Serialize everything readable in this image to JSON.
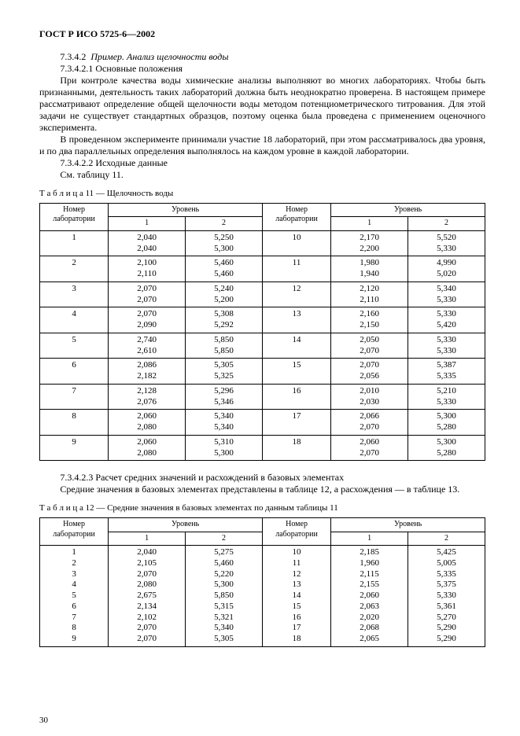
{
  "title": "ГОСТ Р ИСО 5725-6—2002",
  "s_7342": "7.3.4.2",
  "s_7342_title": "Пример. Анализ щелочности воды",
  "s_73421": "7.3.4.2.1  Основные положения",
  "p1": "При контроле качества воды химические анализы выполняют во многих лабораториях. Чтобы быть признанными, деятельность таких лабораторий должна быть  неоднократно проверена. В настоящем примере рассматривают определение общей щелочности воды методом потенциометрического титрования. Для этой задачи не существует стандартных образцов, поэтому оценка была проведена с применением оценочного эксперимента.",
  "p2": "В проведенном эксперименте принимали участие 18 лабораторий, при этом рассматривалось два уровня, и по два параллельных определения выполнялось на каждом уровне в каждой лаборатории.",
  "s_73422": "7.3.4.2.2  Исходные данные",
  "see_t11": "См. таблицу 11.",
  "t11_label": "Т а б л и ц а  11",
  "t11_title": " — Щелочность воды",
  "th_lab": "Номер лаборатории",
  "th_level": "Уровень",
  "th_l1": "1",
  "th_l2": "2",
  "t11": {
    "left": [
      {
        "n": "1",
        "l1": "2,040\n2,040",
        "l2": "5,250\n5,300"
      },
      {
        "n": "2",
        "l1": "2,100\n2,110",
        "l2": "5,460\n5,460"
      },
      {
        "n": "3",
        "l1": "2,070\n2,070",
        "l2": "5,240\n5,200"
      },
      {
        "n": "4",
        "l1": "2,070\n2,090",
        "l2": "5,308\n5,292"
      },
      {
        "n": "5",
        "l1": "2,740\n2,610",
        "l2": "5,850\n5,850"
      },
      {
        "n": "6",
        "l1": "2,086\n2,182",
        "l2": "5,305\n5,325"
      },
      {
        "n": "7",
        "l1": "2,128\n2,076",
        "l2": "5,296\n5,346"
      },
      {
        "n": "8",
        "l1": "2,060\n2,080",
        "l2": "5,340\n5,340"
      },
      {
        "n": "9",
        "l1": "2,060\n2,080",
        "l2": "5,310\n5,300"
      }
    ],
    "right": [
      {
        "n": "10",
        "l1": "2,170\n2,200",
        "l2": "5,520\n5,330"
      },
      {
        "n": "11",
        "l1": "1,980\n1,940",
        "l2": "4,990\n5,020"
      },
      {
        "n": "12",
        "l1": "2,120\n2,110",
        "l2": "5,340\n5,330"
      },
      {
        "n": "13",
        "l1": "2,160\n2,150",
        "l2": "5,330\n5,420"
      },
      {
        "n": "14",
        "l1": "2,050\n2,070",
        "l2": "5,330\n5,330"
      },
      {
        "n": "15",
        "l1": "2,070\n2,056",
        "l2": "5,387\n5,335"
      },
      {
        "n": "16",
        "l1": "2,010\n2,030",
        "l2": "5,210\n5,330"
      },
      {
        "n": "17",
        "l1": "2,066\n2,070",
        "l2": "5,300\n5,280"
      },
      {
        "n": "18",
        "l1": "2,060\n2,070",
        "l2": "5,300\n5,280"
      }
    ]
  },
  "s_73423": "7.3.4.2.3  Расчет средних значений и расхождений в базовых элементах",
  "p3": "Средние значения в базовых элементах представлены в таблице 12, а расхождения — в таблице 13.",
  "t12_label": "Т а б л и ц а  12",
  "t12_title": " — Средние значения в базовых элементах по данным таблицы 11",
  "t12": {
    "left": [
      {
        "n": "1",
        "l1": "2,040",
        "l2": "5,275"
      },
      {
        "n": "2",
        "l1": "2,105",
        "l2": "5,460"
      },
      {
        "n": "3",
        "l1": "2,070",
        "l2": "5,220"
      },
      {
        "n": "4",
        "l1": "2,080",
        "l2": "5,300"
      },
      {
        "n": "5",
        "l1": "2,675",
        "l2": "5,850"
      },
      {
        "n": "6",
        "l1": "2,134",
        "l2": "5,315"
      },
      {
        "n": "7",
        "l1": "2,102",
        "l2": "5,321"
      },
      {
        "n": "8",
        "l1": "2,070",
        "l2": "5,340"
      },
      {
        "n": "9",
        "l1": "2,070",
        "l2": "5,305"
      }
    ],
    "right": [
      {
        "n": "10",
        "l1": "2,185",
        "l2": "5,425"
      },
      {
        "n": "11",
        "l1": "1,960",
        "l2": "5,005"
      },
      {
        "n": "12",
        "l1": "2,115",
        "l2": "5,335"
      },
      {
        "n": "13",
        "l1": "2,155",
        "l2": "5,375"
      },
      {
        "n": "14",
        "l1": "2,060",
        "l2": "5,330"
      },
      {
        "n": "15",
        "l1": "2,063",
        "l2": "5,361"
      },
      {
        "n": "16",
        "l1": "2,020",
        "l2": "5,270"
      },
      {
        "n": "17",
        "l1": "2,068",
        "l2": "5,290"
      },
      {
        "n": "18",
        "l1": "2,065",
        "l2": "5,290"
      }
    ]
  },
  "page_num": "30"
}
